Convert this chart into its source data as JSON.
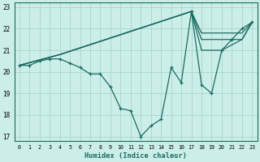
{
  "xlabel": "Humidex (Indice chaleur)",
  "bg_color": "#cceee8",
  "grid_color": "#aad8d0",
  "line_color": "#1a6b60",
  "xlim": [
    -0.5,
    23.5
  ],
  "ylim": [
    16.8,
    23.2
  ],
  "yticks": [
    17,
    18,
    19,
    20,
    21,
    22,
    23
  ],
  "xticks": [
    0,
    1,
    2,
    3,
    4,
    5,
    6,
    7,
    8,
    9,
    10,
    11,
    12,
    13,
    14,
    15,
    16,
    17,
    18,
    19,
    20,
    21,
    22,
    23
  ],
  "main_x": [
    0,
    1,
    2,
    3,
    4,
    5,
    6,
    7,
    8,
    9,
    10,
    11,
    12,
    13,
    14,
    15,
    16,
    17,
    18,
    19,
    20,
    21,
    22,
    23
  ],
  "main_y": [
    20.3,
    20.3,
    20.5,
    20.6,
    20.6,
    20.4,
    20.2,
    19.9,
    19.9,
    19.3,
    18.3,
    18.2,
    17.0,
    17.5,
    17.8,
    20.2,
    19.5,
    22.8,
    19.4,
    19.0,
    21.0,
    21.5,
    22.0,
    22.3
  ],
  "smooth1_x": [
    0,
    4,
    17,
    18,
    22,
    23
  ],
  "smooth1_y": [
    20.3,
    20.8,
    22.8,
    21.8,
    21.8,
    22.3
  ],
  "smooth2_x": [
    0,
    4,
    17,
    18,
    22,
    23
  ],
  "smooth2_y": [
    20.3,
    20.8,
    22.8,
    21.5,
    21.5,
    22.3
  ],
  "smooth3_x": [
    0,
    4,
    17,
    18,
    20,
    22,
    23
  ],
  "smooth3_y": [
    20.3,
    20.8,
    22.8,
    21.0,
    21.0,
    21.5,
    22.3
  ]
}
